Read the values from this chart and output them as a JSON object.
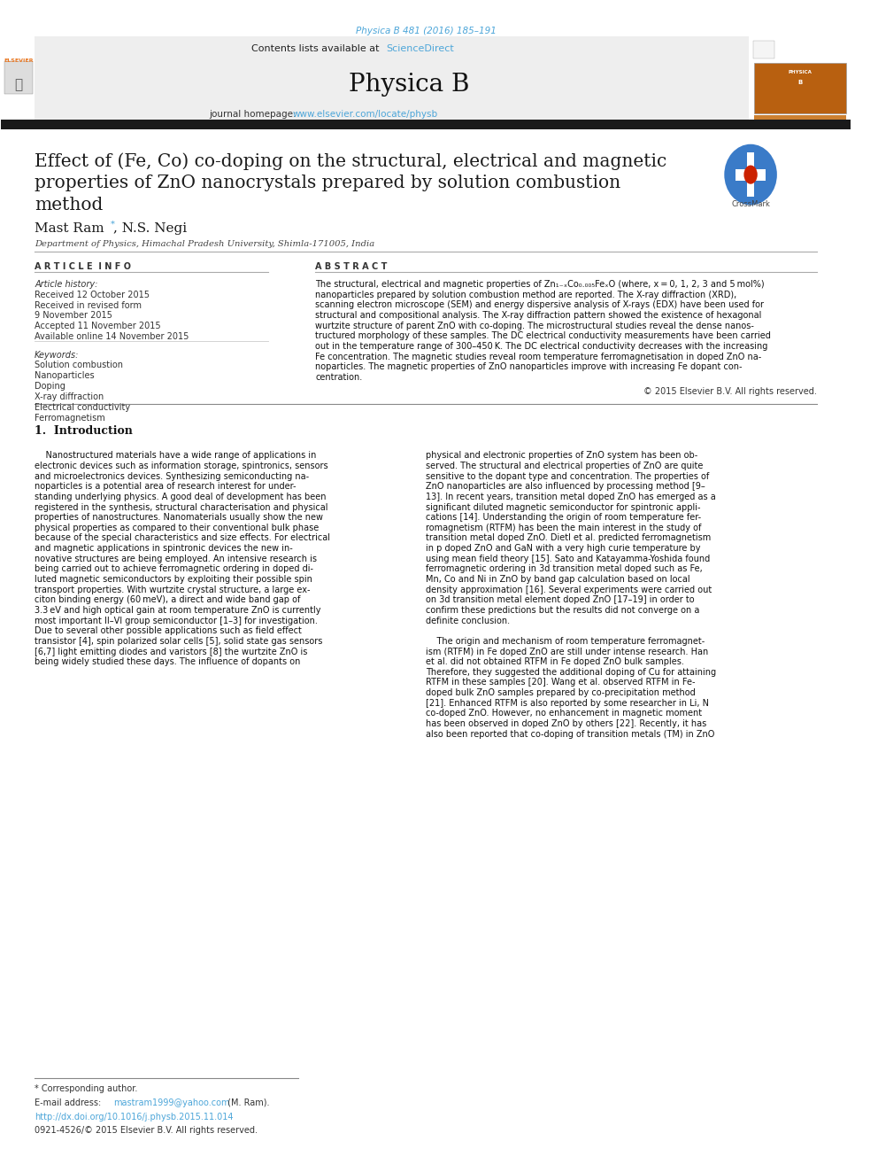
{
  "page_width": 9.92,
  "page_height": 13.23,
  "background_color": "#ffffff",
  "top_citation": "Physica B 481 (2016) 185–191",
  "top_citation_color": "#4da6d9",
  "header_bg": "#eeeeee",
  "header_text1": "Contents lists available at ",
  "header_sciencedirect": "ScienceDirect",
  "header_sd_color": "#4da6d9",
  "journal_title": "Physica B",
  "journal_homepage_text": "journal homepage: ",
  "journal_homepage_url": "www.elsevier.com/locate/physb",
  "journal_url_color": "#4da6d9",
  "black_bar_color": "#1a1a1a",
  "article_title_line1": "Effect of (Fe, Co) co-doping on the structural, electrical and magnetic",
  "article_title_line2": "properties of ZnO nanocrystals prepared by solution combustion",
  "article_title_line3": "method",
  "article_title_color": "#1a1a1a",
  "authors": "Mast Ram",
  "authors_star": "*",
  "authors2": ", N.S. Negi",
  "authors_color": "#1a1a1a",
  "affiliation": "Department of Physics, Himachal Pradesh University, Shimla-171005, India",
  "affiliation_color": "#444444",
  "article_info_header": "A R T I C L E  I N F O",
  "abstract_header": "A B S T R A C T",
  "article_history_label": "Article history:",
  "received1": "Received 12 October 2015",
  "received2": "Received in revised form",
  "received3": "9 November 2015",
  "accepted": "Accepted 11 November 2015",
  "available": "Available online 14 November 2015",
  "keywords_label": "Keywords:",
  "keywords": [
    "Solution combustion",
    "Nanoparticles",
    "Doping",
    "X-ray diffraction",
    "Electrical conductivity",
    "Ferromagnetism"
  ],
  "abstract_text_line1": "The structural, electrical and magnetic properties of Zn₁₋ₓCo₀.₀₀₅FeₓO (where, x = 0, 1, 2, 3 and 5 mol%)",
  "abstract_text_line2": "nanoparticles prepared by solution combustion method are reported. The X-ray diffraction (XRD),",
  "abstract_text_line3": "scanning electron microscope (SEM) and energy dispersive analysis of X-rays (EDX) have been used for",
  "abstract_text_line4": "structural and compositional analysis. The X-ray diffraction pattern showed the existence of hexagonal",
  "abstract_text_line5": "wurtzite structure of parent ZnO with co-doping. The microstructural studies reveal the dense nanos-",
  "abstract_text_line6": "tructured morphology of these samples. The DC electrical conductivity measurements have been carried",
  "abstract_text_line7": "out in the temperature range of 300–450 K. The DC electrical conductivity decreases with the increasing",
  "abstract_text_line8": "Fe concentration. The magnetic studies reveal room temperature ferromagnetisation in doped ZnO na-",
  "abstract_text_line9": "noparticles. The magnetic properties of ZnO nanoparticles improve with increasing Fe dopant con-",
  "abstract_text_line10": "centration.",
  "copyright": "© 2015 Elsevier B.V. All rights reserved.",
  "intro_heading": "1.  Introduction",
  "footnote_star": "* Corresponding author.",
  "footnote_email_pre": "E-mail address: ",
  "footnote_email_link": "mastram1999@yahoo.com",
  "footnote_email_post": " (M. Ram).",
  "footnote_doi": "http://dx.doi.org/10.1016/j.physb.2015.11.014",
  "footnote_issn": "0921-4526/© 2015 Elsevier B.V. All rights reserved.",
  "link_color": "#4da6d9",
  "doi_color": "#4da6d9",
  "intro_left_lines": [
    "    Nanostructured materials have a wide range of applications in",
    "electronic devices such as information storage, spintronics, sensors",
    "and microelectronics devices. Synthesizing semiconducting na-",
    "noparticles is a potential area of research interest for under-",
    "standing underlying physics. A good deal of development has been",
    "registered in the synthesis, structural characterisation and physical",
    "properties of nanostructures. Nanomaterials usually show the new",
    "physical properties as compared to their conventional bulk phase",
    "because of the special characteristics and size effects. For electrical",
    "and magnetic applications in spintronic devices the new in-",
    "novative structures are being employed. An intensive research is",
    "being carried out to achieve ferromagnetic ordering in doped di-",
    "luted magnetic semiconductors by exploiting their possible spin",
    "transport properties. With wurtzite crystal structure, a large ex-",
    "citon binding energy (60 meV), a direct and wide band gap of",
    "3.3 eV and high optical gain at room temperature ZnO is currently",
    "most important II–VI group semiconductor [1–3] for investigation.",
    "Due to several other possible applications such as field effect",
    "transistor [4], spin polarized solar cells [5], solid state gas sensors",
    "[6,7] light emitting diodes and varistors [8] the wurtzite ZnO is",
    "being widely studied these days. The influence of dopants on"
  ],
  "intro_right_lines": [
    "physical and electronic properties of ZnO system has been ob-",
    "served. The structural and electrical properties of ZnO are quite",
    "sensitive to the dopant type and concentration. The properties of",
    "ZnO nanoparticles are also influenced by processing method [9–",
    "13]. In recent years, transition metal doped ZnO has emerged as a",
    "significant diluted magnetic semiconductor for spintronic appli-",
    "cations [14]. Understanding the origin of room temperature fer-",
    "romagnetism (RTFM) has been the main interest in the study of",
    "transition metal doped ZnO. Dietl et al. predicted ferromagnetism",
    "in p doped ZnO and GaN with a very high curie temperature by",
    "using mean field theory [15]. Sato and Katayamma-Yoshida found",
    "ferromagnetic ordering in 3d transition metal doped such as Fe,",
    "Mn, Co and Ni in ZnO by band gap calculation based on local",
    "density approximation [16]. Several experiments were carried out",
    "on 3d transition metal element doped ZnO [17–19] in order to",
    "confirm these predictions but the results did not converge on a",
    "definite conclusion.",
    "",
    "    The origin and mechanism of room temperature ferromagnet-",
    "ism (RTFM) in Fe doped ZnO are still under intense research. Han",
    "et al. did not obtained RTFM in Fe doped ZnO bulk samples.",
    "Therefore, they suggested the additional doping of Cu for attaining",
    "RTFM in these samples [20]. Wang et al. observed RTFM in Fe-",
    "doped bulk ZnO samples prepared by co-precipitation method",
    "[21]. Enhanced RTFM is also reported by some researcher in Li, N",
    "co-doped ZnO. However, no enhancement in magnetic moment",
    "has been observed in doped ZnO by others [22]. Recently, it has",
    "also been reported that co-doping of transition metals (TM) in ZnO"
  ]
}
